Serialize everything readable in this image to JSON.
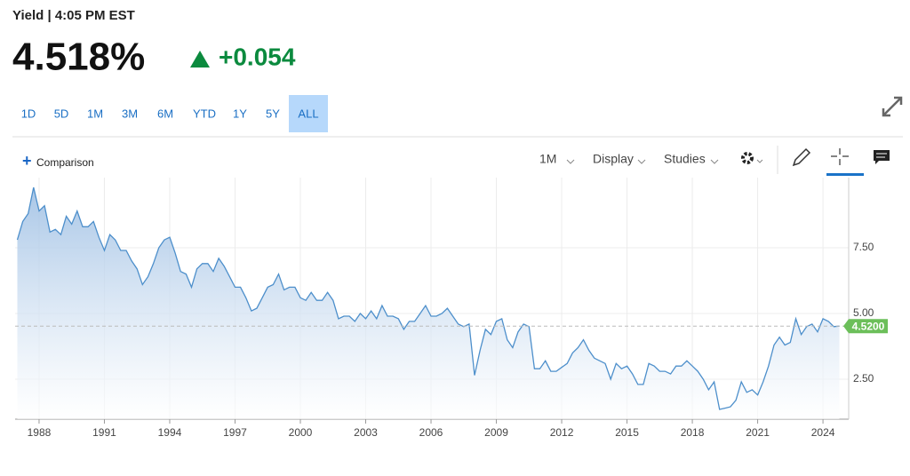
{
  "header": {
    "title": "Yield | 4:05 PM EST",
    "price": "4.518%",
    "change": "+0.054"
  },
  "ranges": [
    "1D",
    "5D",
    "1M",
    "3M",
    "6M",
    "YTD",
    "1Y",
    "5Y",
    "ALL"
  ],
  "active_range": "ALL",
  "toolbar": {
    "comparison": "Comparison",
    "interval": "1M",
    "display": "Display",
    "studies": "Studies"
  },
  "chart_data": {
    "type": "area",
    "color": "#4d8fcb",
    "x": [
      1987,
      1987.25,
      1987.5,
      1987.75,
      1988,
      1988.25,
      1988.5,
      1988.75,
      1989,
      1989.25,
      1989.5,
      1989.75,
      1990,
      1990.25,
      1990.5,
      1990.75,
      1991,
      1991.25,
      1991.5,
      1991.75,
      1992,
      1992.25,
      1992.5,
      1992.75,
      1993,
      1993.25,
      1993.5,
      1993.75,
      1994,
      1994.25,
      1994.5,
      1994.75,
      1995,
      1995.25,
      1995.5,
      1995.75,
      1996,
      1996.25,
      1996.5,
      1996.75,
      1997,
      1997.25,
      1997.5,
      1997.75,
      1998,
      1998.25,
      1998.5,
      1998.75,
      1999,
      1999.25,
      1999.5,
      1999.75,
      2000,
      2000.25,
      2000.5,
      2000.75,
      2001,
      2001.25,
      2001.5,
      2001.75,
      2002,
      2002.25,
      2002.5,
      2002.75,
      2003,
      2003.25,
      2003.5,
      2003.75,
      2004,
      2004.25,
      2004.5,
      2004.75,
      2005,
      2005.25,
      2005.5,
      2005.75,
      2006,
      2006.25,
      2006.5,
      2006.75,
      2007,
      2007.25,
      2007.5,
      2007.75,
      2008,
      2008.25,
      2008.5,
      2008.75,
      2009,
      2009.25,
      2009.5,
      2009.75,
      2010,
      2010.25,
      2010.5,
      2010.75,
      2011,
      2011.25,
      2011.5,
      2011.75,
      2012,
      2012.25,
      2012.5,
      2012.75,
      2013,
      2013.25,
      2013.5,
      2013.75,
      2014,
      2014.25,
      2014.5,
      2014.75,
      2015,
      2015.25,
      2015.5,
      2015.75,
      2016,
      2016.25,
      2016.5,
      2016.75,
      2017,
      2017.25,
      2017.5,
      2017.75,
      2018,
      2018.25,
      2018.5,
      2018.75,
      2019,
      2019.25,
      2019.5,
      2019.75,
      2020,
      2020.25,
      2020.5,
      2020.75,
      2021,
      2021.25,
      2021.5,
      2021.75,
      2022,
      2022.25,
      2022.5,
      2022.75,
      2023,
      2023.25,
      2023.5,
      2023.75,
      2024,
      2024.25,
      2024.5,
      2024.75
    ],
    "values": [
      7.8,
      8.5,
      8.8,
      9.8,
      8.9,
      9.1,
      8.1,
      8.2,
      8.0,
      8.7,
      8.4,
      8.9,
      8.3,
      8.3,
      8.5,
      7.9,
      7.4,
      8.0,
      7.8,
      7.4,
      7.4,
      7.0,
      6.7,
      6.1,
      6.4,
      6.9,
      7.5,
      7.8,
      7.9,
      7.3,
      6.6,
      6.5,
      6.0,
      6.7,
      6.9,
      6.9,
      6.6,
      7.1,
      6.8,
      6.4,
      6.0,
      6.0,
      5.6,
      5.1,
      5.2,
      5.6,
      6.0,
      6.1,
      6.5,
      5.9,
      6.0,
      6.0,
      5.6,
      5.5,
      5.8,
      5.5,
      5.5,
      5.8,
      5.5,
      4.8,
      4.9,
      4.9,
      4.7,
      5.0,
      4.8,
      5.1,
      4.8,
      5.3,
      4.9,
      4.9,
      4.8,
      4.4,
      4.7,
      4.7,
      5.0,
      5.3,
      4.9,
      4.9,
      5.0,
      5.2,
      4.9,
      4.6,
      4.5,
      4.6,
      2.65,
      3.6,
      4.4,
      4.2,
      4.7,
      4.8,
      4.0,
      3.7,
      4.3,
      4.6,
      4.5,
      2.9,
      2.9,
      3.2,
      2.8,
      2.8,
      2.95,
      3.1,
      3.5,
      3.7,
      4.0,
      3.6,
      3.3,
      3.2,
      3.1,
      2.5,
      3.1,
      2.9,
      3.0,
      2.7,
      2.3,
      2.3,
      3.1,
      3.0,
      2.8,
      2.8,
      2.7,
      3.0,
      3.0,
      3.2,
      3.0,
      2.8,
      2.5,
      2.1,
      2.4,
      1.35,
      1.4,
      1.45,
      1.7,
      2.4,
      2.0,
      2.1,
      1.9,
      2.4,
      3.0,
      3.8,
      4.1,
      3.8,
      3.9,
      4.8,
      4.2,
      4.5,
      4.6,
      4.3,
      4.8,
      4.7,
      4.5,
      4.52
    ],
    "xlim": [
      1986.9,
      2025.18
    ],
    "ylim": [
      0.98,
      10.17
    ],
    "xticks": [
      1988,
      1991,
      1994,
      1997,
      2000,
      2003,
      2006,
      2009,
      2012,
      2015,
      2018,
      2021,
      2024
    ],
    "yticks": [
      {
        "value": 2.5,
        "label": "2.50"
      },
      {
        "value": 5,
        "label": "5.00"
      },
      {
        "value": 7.5,
        "label": "7.50"
      }
    ],
    "grid": true,
    "reference_line": {
      "value": 4.52,
      "label": "4.5200",
      "color": "#6cbf5a"
    }
  }
}
